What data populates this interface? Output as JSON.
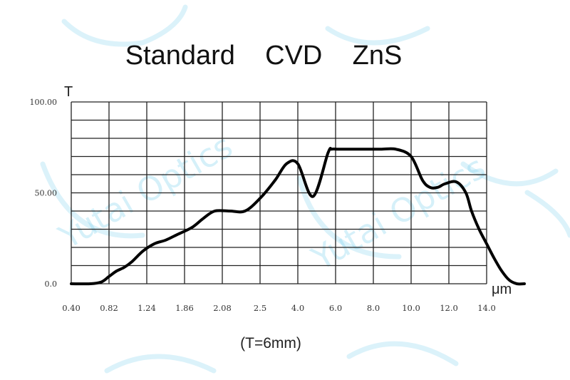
{
  "chart_data": {
    "type": "line",
    "title": "Standard    CVD    ZnS",
    "ylabel": "T",
    "xlabel": "μm",
    "note": "(T=6mm)",
    "x_ticks": [
      "0.40",
      "0.82",
      "1.24",
      "1.86",
      "2.08",
      "2.5",
      "4.0",
      "6.0",
      "8.0",
      "10.0",
      "12.0",
      "14.0"
    ],
    "y_ticks": [
      {
        "label": "100.00",
        "value": 100
      },
      {
        "label": "50.00",
        "value": 50
      },
      {
        "label": "0.0",
        "value": 0
      }
    ],
    "ylim": [
      0,
      100
    ],
    "grid": true,
    "series": [
      {
        "color": "#000000",
        "x_tick_index": [
          0,
          0.5,
          0.8,
          1.0,
          1.2,
          1.4,
          1.6,
          1.9,
          2.2,
          2.5,
          2.8,
          3.2,
          3.5,
          3.8,
          4.2,
          4.6,
          5.0,
          5.4,
          5.7,
          6.0,
          6.4,
          6.8,
          6.9,
          7.05,
          7.18,
          7.3,
          7.5,
          7.8,
          8.2,
          8.6,
          9.0,
          9.3,
          9.5,
          9.7,
          9.9,
          10.2,
          10.45,
          10.6,
          10.8,
          11.0,
          11.2,
          11.4,
          11.6,
          11.8,
          12.0
        ],
        "values": [
          0,
          0,
          1,
          4,
          7,
          9,
          12,
          18,
          22,
          24,
          27,
          31,
          36,
          40,
          40,
          40,
          47,
          57,
          66,
          66,
          48,
          72,
          74,
          74,
          74,
          74,
          74,
          74,
          74,
          74,
          70,
          57,
          53,
          53,
          55,
          56,
          50,
          40,
          30,
          22,
          14,
          7,
          2,
          0,
          0
        ]
      }
    ]
  },
  "watermark": {
    "text": "Yutai Optics",
    "color": "#7fd2ee"
  }
}
